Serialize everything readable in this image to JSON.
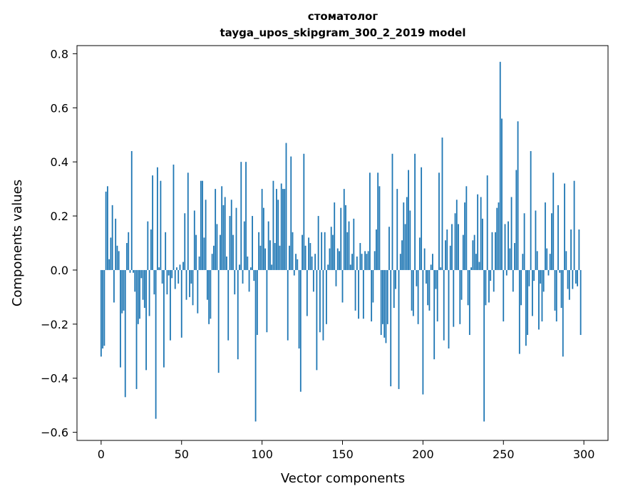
{
  "chart_data": {
    "type": "bar",
    "title_line1": "стоматолог",
    "title_line2": "tayga_upos_skipgram_300_2_2019 model",
    "xlabel": "Vector components",
    "ylabel": "Components values",
    "xlim": [
      -15,
      315
    ],
    "ylim": [
      -0.63,
      0.83
    ],
    "xticks": [
      0,
      50,
      100,
      150,
      200,
      250,
      300
    ],
    "xtick_labels": [
      "0",
      "50",
      "100",
      "150",
      "200",
      "250",
      "300"
    ],
    "yticks": [
      -0.6,
      -0.4,
      -0.2,
      0.0,
      0.2,
      0.4,
      0.6,
      0.8
    ],
    "ytick_labels": [
      "−0.6",
      "−0.4",
      "−0.2",
      "0.0",
      "0.2",
      "0.4",
      "0.6",
      "0.8"
    ],
    "bar_color": "#1f77b4",
    "values": [
      -0.32,
      -0.29,
      -0.28,
      0.29,
      0.31,
      0.04,
      0.12,
      0.24,
      -0.12,
      0.19,
      0.09,
      0.07,
      -0.36,
      -0.16,
      -0.15,
      -0.47,
      0.1,
      0.14,
      -0.01,
      0.44,
      -0.01,
      -0.08,
      -0.44,
      -0.2,
      -0.18,
      -0.03,
      -0.11,
      -0.14,
      -0.37,
      0.18,
      -0.17,
      0.15,
      0.35,
      -0.09,
      -0.55,
      0.38,
      0.01,
      0.33,
      -0.05,
      -0.36,
      0.14,
      -0.09,
      -0.02,
      -0.26,
      -0.03,
      0.39,
      -0.07,
      0.01,
      -0.05,
      0.02,
      -0.25,
      0.03,
      0.21,
      -0.11,
      0.36,
      -0.1,
      -0.05,
      -0.13,
      0.22,
      0.13,
      -0.16,
      0.05,
      0.33,
      0.33,
      0.12,
      0.26,
      -0.11,
      -0.2,
      -0.18,
      0.06,
      0.09,
      0.3,
      0.17,
      -0.38,
      0.13,
      0.31,
      0.24,
      0.27,
      0.05,
      -0.26,
      0.2,
      0.26,
      0.13,
      -0.09,
      0.23,
      -0.33,
      0.02,
      0.4,
      -0.05,
      0.18,
      0.4,
      0.05,
      -0.08,
      0.01,
      0.2,
      -0.04,
      -0.56,
      -0.24,
      0.14,
      0.09,
      0.3,
      0.23,
      0.08,
      -0.23,
      0.18,
      0.11,
      0.02,
      0.33,
      0.1,
      0.3,
      0.26,
      0.09,
      0.32,
      0.3,
      0.3,
      0.47,
      -0.26,
      0.09,
      0.42,
      0.14,
      -0.02,
      0.06,
      0.04,
      -0.29,
      -0.45,
      0.13,
      0.43,
      0.09,
      -0.17,
      0.12,
      0.1,
      0.05,
      -0.08,
      0.06,
      -0.37,
      0.2,
      -0.23,
      0.14,
      -0.26,
      0.14,
      -0.2,
      0.02,
      0.08,
      0.16,
      0.13,
      0.25,
      -0.06,
      0.08,
      0.07,
      0.23,
      -0.12,
      0.3,
      0.24,
      0.14,
      0.18,
      0.02,
      0.06,
      0.19,
      -0.15,
      0.05,
      -0.18,
      0.1,
      0.06,
      -0.18,
      0.07,
      0.06,
      0.07,
      0.36,
      -0.19,
      -0.12,
      0.07,
      0.15,
      0.36,
      0.31,
      -0.24,
      -0.2,
      -0.25,
      -0.27,
      -0.2,
      0.16,
      -0.43,
      0.43,
      -0.14,
      -0.07,
      0.3,
      -0.44,
      0.06,
      0.11,
      0.25,
      0.17,
      0.27,
      0.37,
      0.22,
      -0.15,
      -0.17,
      0.43,
      -0.06,
      -0.2,
      0.12,
      0.38,
      -0.46,
      0.08,
      -0.05,
      -0.13,
      -0.15,
      0.02,
      0.06,
      -0.33,
      -0.07,
      -0.19,
      0.36,
      0.01,
      0.49,
      -0.26,
      0.11,
      0.15,
      -0.29,
      0.09,
      0.17,
      -0.21,
      0.21,
      0.26,
      0.17,
      -0.2,
      -0.11,
      0.13,
      0.25,
      0.31,
      -0.13,
      -0.24,
      0.01,
      0.11,
      0.13,
      0.06,
      0.28,
      0.03,
      0.27,
      0.19,
      -0.56,
      -0.13,
      0.35,
      -0.12,
      -0.04,
      0.14,
      -0.08,
      0.14,
      0.23,
      0.25,
      0.77,
      0.56,
      -0.19,
      0.17,
      -0.02,
      0.18,
      0.08,
      0.27,
      -0.08,
      0.1,
      0.37,
      0.55,
      -0.31,
      -0.13,
      0.06,
      0.21,
      -0.28,
      -0.24,
      -0.06,
      0.44,
      -0.17,
      -0.04,
      0.22,
      0.07,
      -0.22,
      -0.05,
      -0.19,
      -0.08,
      0.25,
      0.08,
      -0.02,
      0.06,
      0.21,
      0.36,
      -0.15,
      -0.19,
      0.24,
      -0.01,
      -0.14,
      -0.32,
      0.32,
      0.07,
      -0.07,
      -0.11,
      0.15,
      -0.07,
      0.33,
      -0.05,
      -0.06,
      0.15,
      -0.24
    ]
  }
}
